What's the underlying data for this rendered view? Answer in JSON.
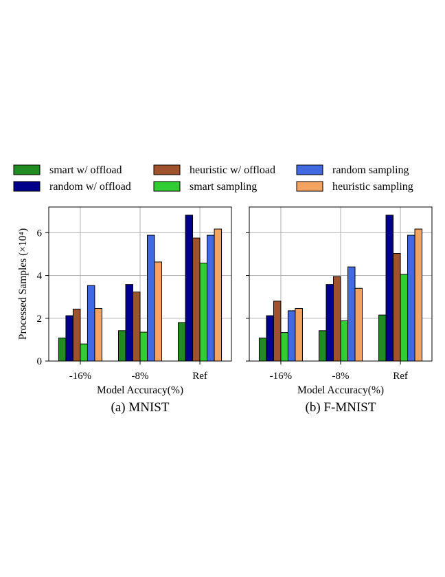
{
  "chart_data": [
    {
      "type": "bar",
      "caption": "(a) MNIST",
      "xlabel": "Model Accuracy(%)",
      "ylabel": "Processed Samples (×10⁴)",
      "ylim": [
        0,
        7.2
      ],
      "yticks": [
        0,
        2,
        4,
        6
      ],
      "grid": true,
      "categories": [
        "-16%",
        "-8%",
        "Ref"
      ],
      "series": [
        {
          "name": "smart w/ offload",
          "color": "#228b22",
          "values": [
            1.08,
            1.42,
            1.8
          ]
        },
        {
          "name": "random w/ offload",
          "color": "#00008b",
          "values": [
            2.12,
            3.58,
            6.82
          ]
        },
        {
          "name": "heuristic w/ offload",
          "color": "#a0522d",
          "values": [
            2.43,
            3.23,
            5.75
          ]
        },
        {
          "name": "smart sampling",
          "color": "#32cd32",
          "values": [
            0.8,
            1.35,
            4.58
          ]
        },
        {
          "name": "random sampling",
          "color": "#4169e1",
          "values": [
            3.53,
            5.88,
            5.88
          ]
        },
        {
          "name": "heuristic sampling",
          "color": "#f4a460",
          "values": [
            2.46,
            4.63,
            6.17
          ]
        }
      ]
    },
    {
      "type": "bar",
      "caption": "(b) F-MNIST",
      "xlabel": "Model Accuracy(%)",
      "ylabel": "",
      "ylim": [
        0,
        7.2
      ],
      "yticks": [
        0,
        2,
        4,
        6
      ],
      "grid": true,
      "categories": [
        "-16%",
        "-8%",
        "Ref"
      ],
      "series": [
        {
          "name": "smart w/ offload",
          "color": "#228b22",
          "values": [
            1.08,
            1.42,
            2.15
          ]
        },
        {
          "name": "random w/ offload",
          "color": "#00008b",
          "values": [
            2.12,
            3.58,
            6.82
          ]
        },
        {
          "name": "heuristic w/ offload",
          "color": "#a0522d",
          "values": [
            2.8,
            3.95,
            5.03
          ]
        },
        {
          "name": "smart sampling",
          "color": "#32cd32",
          "values": [
            1.33,
            1.88,
            4.05
          ]
        },
        {
          "name": "random sampling",
          "color": "#4169e1",
          "values": [
            2.35,
            4.4,
            5.88
          ]
        },
        {
          "name": "heuristic sampling",
          "color": "#f4a460",
          "values": [
            2.46,
            3.4,
            6.17
          ]
        }
      ]
    }
  ],
  "legend": {
    "placement": "top",
    "columns": 3,
    "items": [
      {
        "label": "smart w/ offload",
        "color": "#228b22"
      },
      {
        "label": "random w/ offload",
        "color": "#00008b"
      },
      {
        "label": "heuristic w/ offload",
        "color": "#a0522d"
      },
      {
        "label": "smart sampling",
        "color": "#32cd32"
      },
      {
        "label": "random sampling",
        "color": "#4169e1"
      },
      {
        "label": "heuristic sampling",
        "color": "#f4a460"
      }
    ]
  }
}
